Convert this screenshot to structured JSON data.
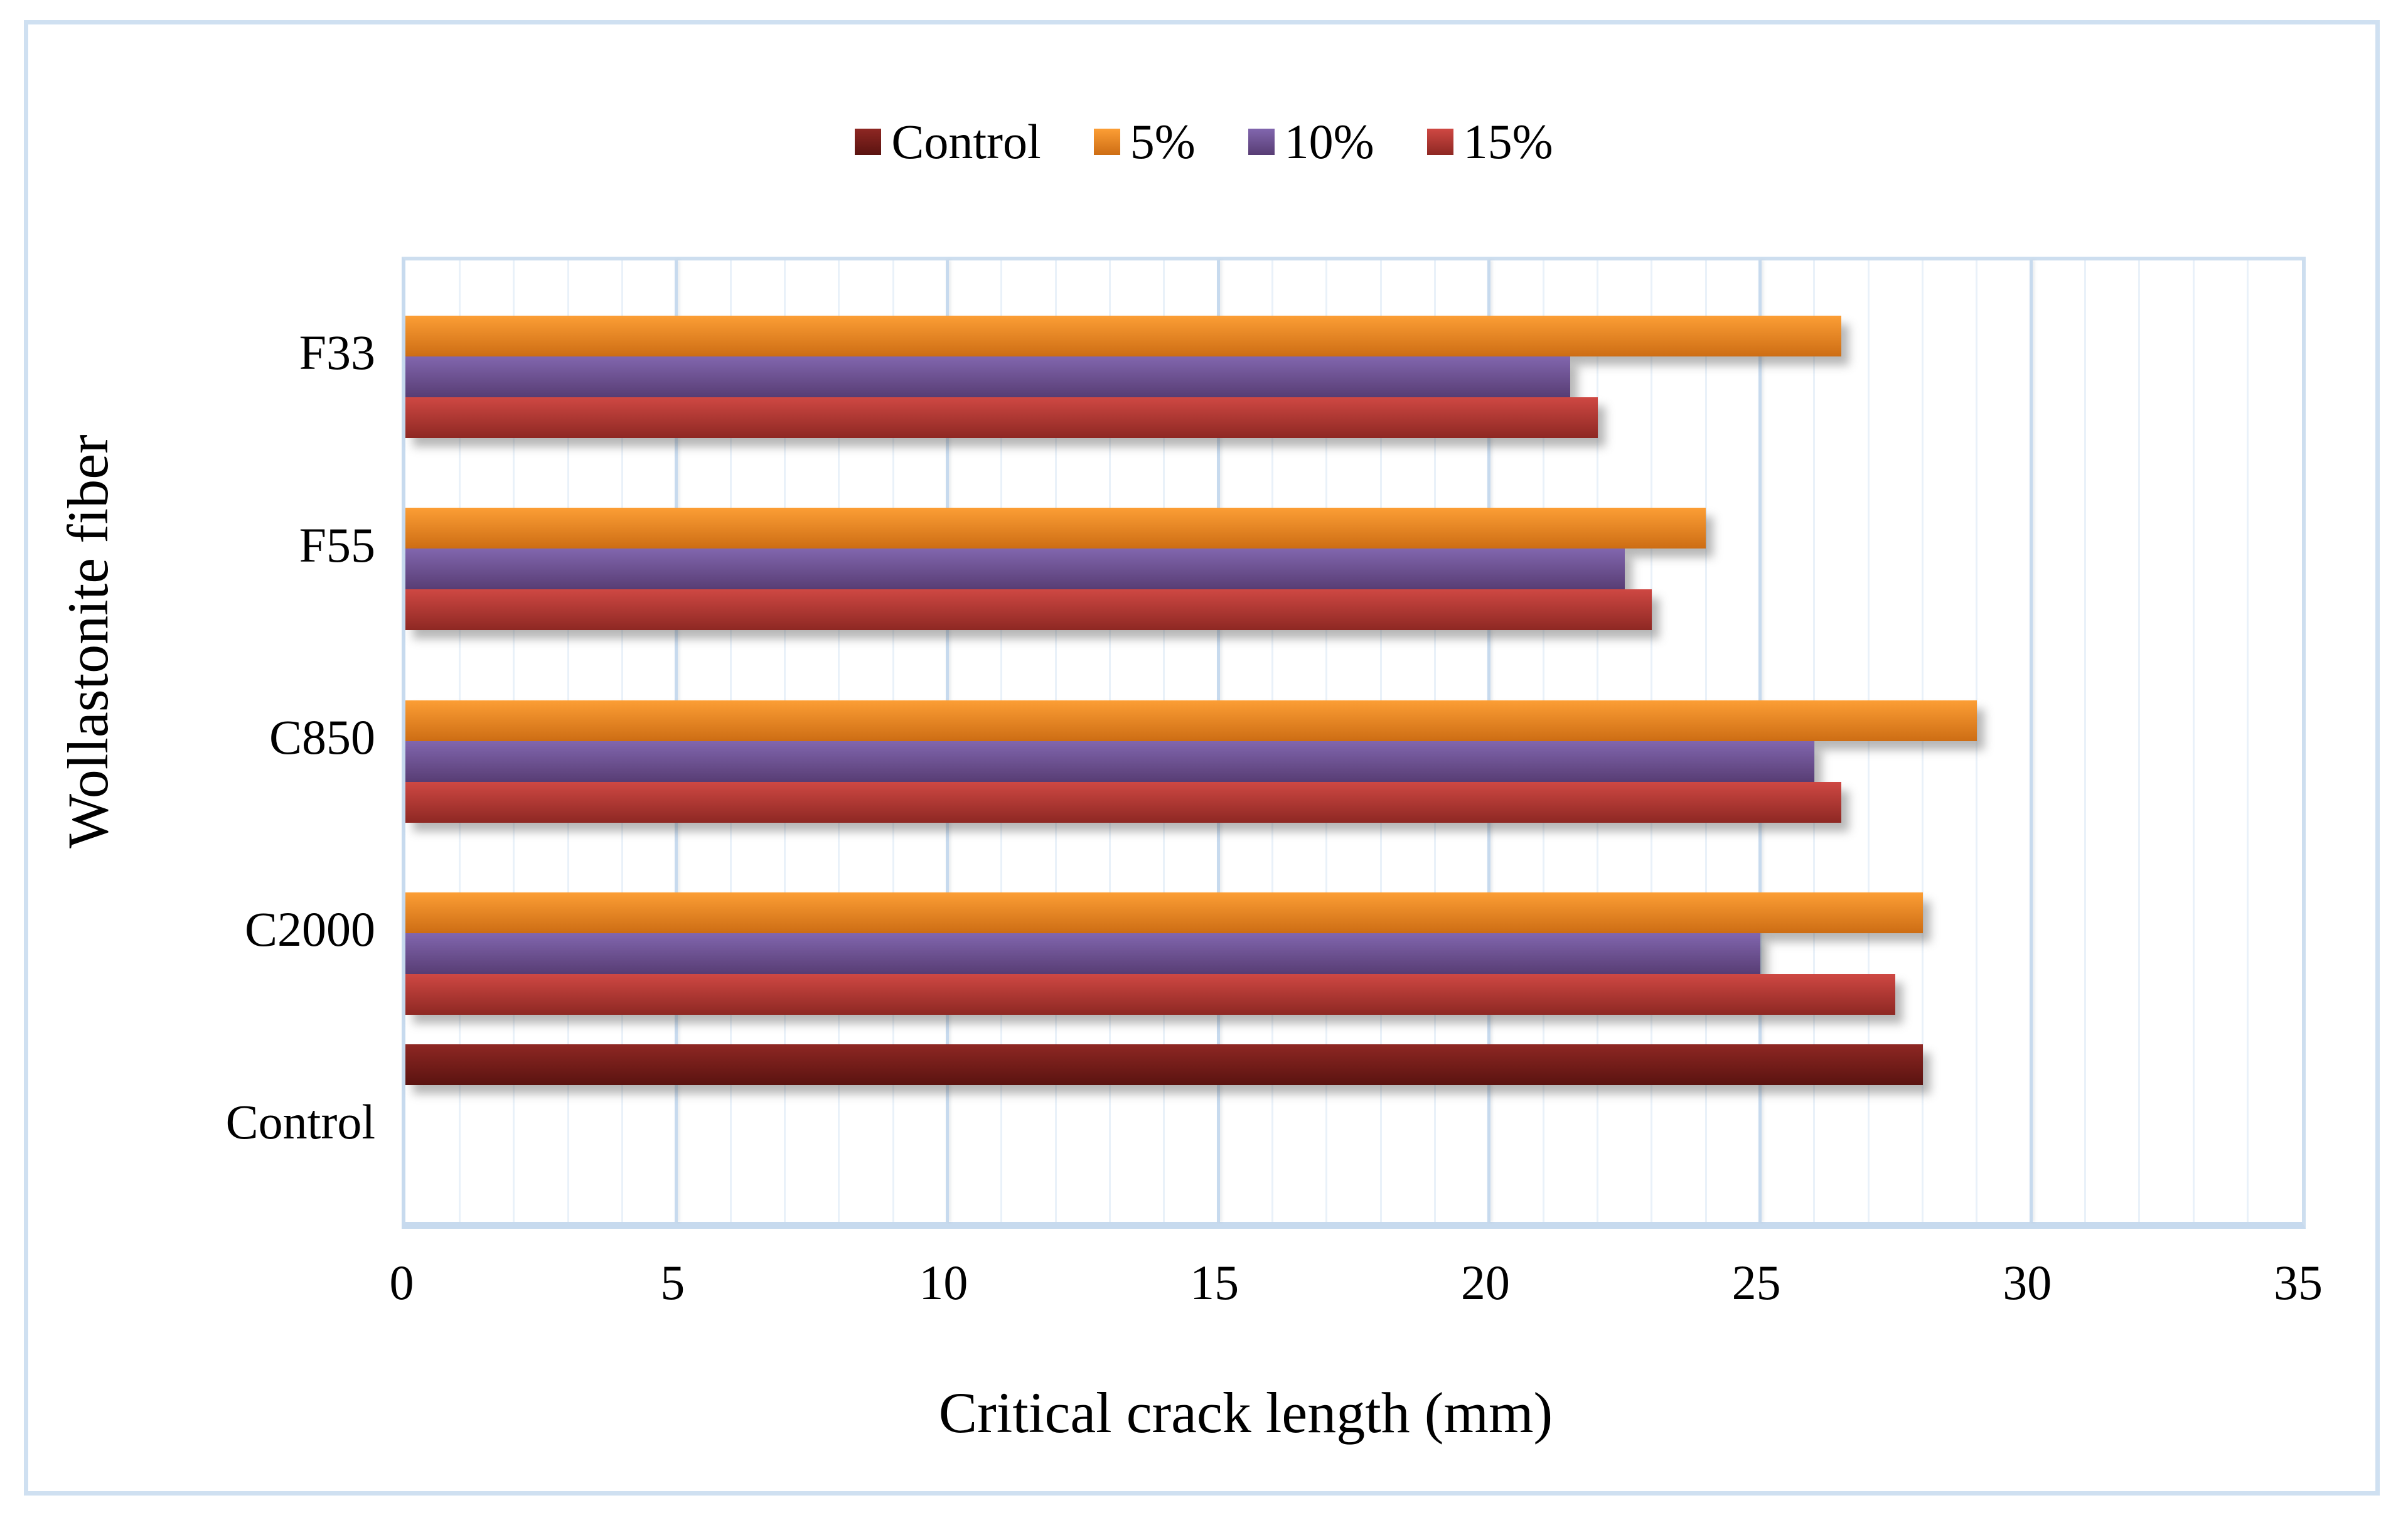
{
  "figure": {
    "background": "#ffffff",
    "border_color": "#cfe0f1",
    "grid_minor_color": "#e9f1f9",
    "grid_major_color": "#c7daee"
  },
  "chart_data": {
    "type": "bar",
    "orientation": "horizontal",
    "title": "",
    "xlabel": "Critical crack length (mm)",
    "ylabel": "Wollastonite fiber",
    "xlim": [
      0,
      35
    ],
    "x_major_ticks": [
      0,
      5,
      10,
      15,
      20,
      25,
      30,
      35
    ],
    "x_minor_unit": 1,
    "grid": "major and minor vertical gridlines",
    "legend_position": "top-center",
    "categories": [
      "F33",
      "F55",
      "C850",
      "C2000",
      "Control"
    ],
    "series": [
      {
        "name": "Control",
        "color_top": "#8e2723",
        "color_bottom": "#5a1310",
        "values": [
          null,
          null,
          null,
          null,
          28
        ]
      },
      {
        "name": "5%",
        "color_top": "#fc9e35",
        "color_bottom": "#cd6d14",
        "values": [
          26.5,
          24,
          29,
          28,
          null
        ]
      },
      {
        "name": "10%",
        "color_top": "#8166ae",
        "color_bottom": "#583d74",
        "values": [
          21.5,
          22.5,
          26,
          25,
          null
        ]
      },
      {
        "name": "15%",
        "color_top": "#cf4843",
        "color_bottom": "#8e2823",
        "values": [
          22,
          23,
          26.5,
          27.5,
          null
        ]
      }
    ]
  }
}
